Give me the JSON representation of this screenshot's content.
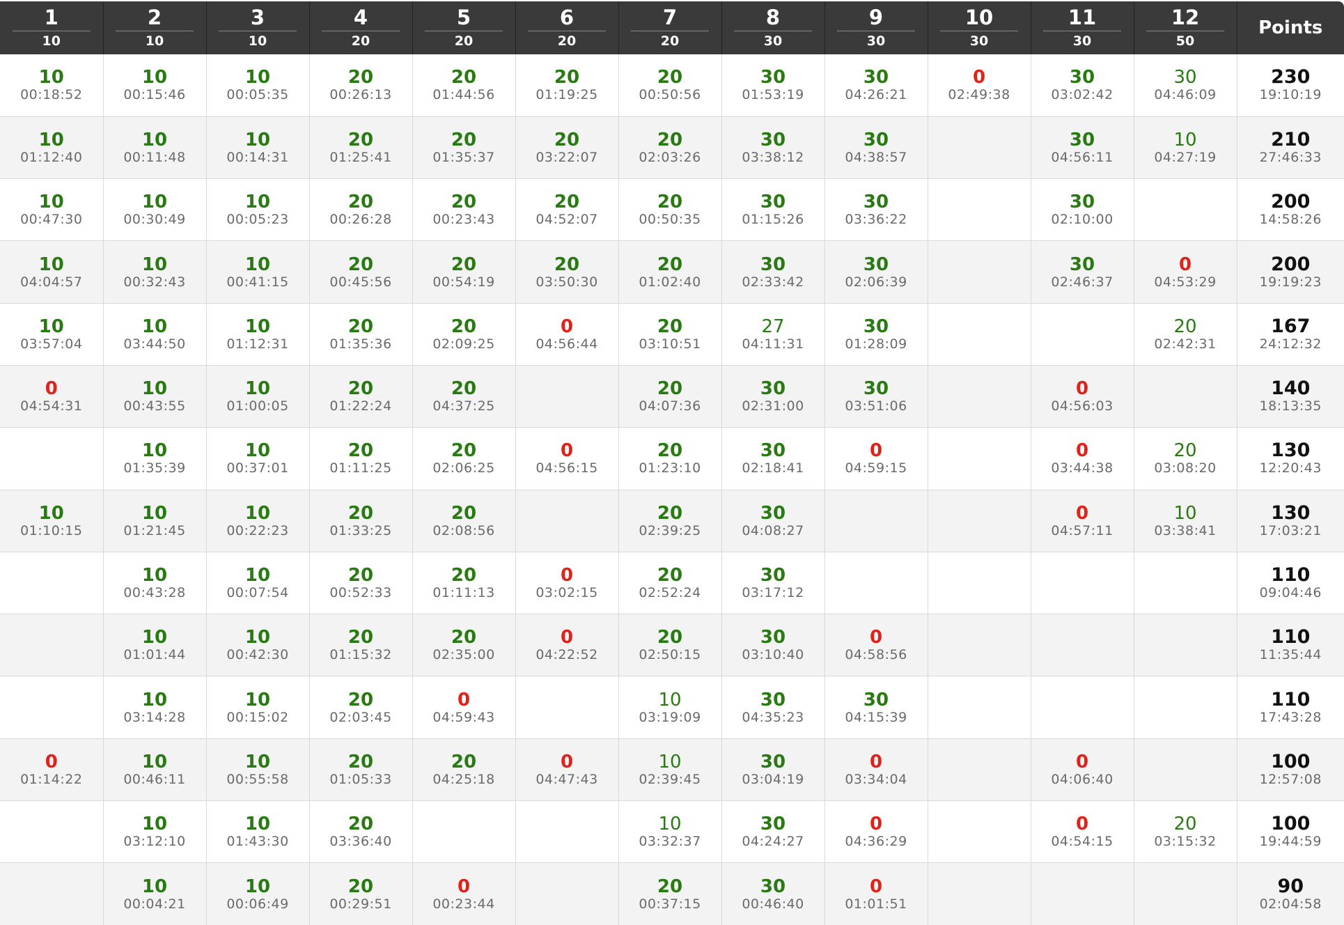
{
  "colors": {
    "header_bg": "#3a3a3a",
    "score_green": "#2a7a14",
    "score_red": "#e0231a",
    "time_gray": "#6a6a6a",
    "row_alt": "#f3f3f3"
  },
  "header": {
    "problems": [
      {
        "num": "1",
        "pts": "10"
      },
      {
        "num": "2",
        "pts": "10"
      },
      {
        "num": "3",
        "pts": "10"
      },
      {
        "num": "4",
        "pts": "20"
      },
      {
        "num": "5",
        "pts": "20"
      },
      {
        "num": "6",
        "pts": "20"
      },
      {
        "num": "7",
        "pts": "20"
      },
      {
        "num": "8",
        "pts": "30"
      },
      {
        "num": "9",
        "pts": "30"
      },
      {
        "num": "10",
        "pts": "30"
      },
      {
        "num": "11",
        "pts": "30"
      },
      {
        "num": "12",
        "pts": "50"
      }
    ],
    "points_label": "Points"
  },
  "rows": [
    {
      "cells": [
        {
          "score": "10",
          "time": "00:18:52",
          "status": "full"
        },
        {
          "score": "10",
          "time": "00:15:46",
          "status": "full"
        },
        {
          "score": "10",
          "time": "00:05:35",
          "status": "full"
        },
        {
          "score": "20",
          "time": "00:26:13",
          "status": "full"
        },
        {
          "score": "20",
          "time": "01:44:56",
          "status": "full"
        },
        {
          "score": "20",
          "time": "01:19:25",
          "status": "full"
        },
        {
          "score": "20",
          "time": "00:50:56",
          "status": "full"
        },
        {
          "score": "30",
          "time": "01:53:19",
          "status": "full"
        },
        {
          "score": "30",
          "time": "04:26:21",
          "status": "full"
        },
        {
          "score": "0",
          "time": "02:49:38",
          "status": "zero"
        },
        {
          "score": "30",
          "time": "03:02:42",
          "status": "full"
        },
        {
          "score": "30",
          "time": "04:46:09",
          "status": "partial"
        }
      ],
      "total": "230",
      "total_time": "19:10:19"
    },
    {
      "cells": [
        {
          "score": "10",
          "time": "01:12:40",
          "status": "full"
        },
        {
          "score": "10",
          "time": "00:11:48",
          "status": "full"
        },
        {
          "score": "10",
          "time": "00:14:31",
          "status": "full"
        },
        {
          "score": "20",
          "time": "01:25:41",
          "status": "full"
        },
        {
          "score": "20",
          "time": "01:35:37",
          "status": "full"
        },
        {
          "score": "20",
          "time": "03:22:07",
          "status": "full"
        },
        {
          "score": "20",
          "time": "02:03:26",
          "status": "full"
        },
        {
          "score": "30",
          "time": "03:38:12",
          "status": "full"
        },
        {
          "score": "30",
          "time": "04:38:57",
          "status": "full"
        },
        null,
        {
          "score": "30",
          "time": "04:56:11",
          "status": "full"
        },
        {
          "score": "10",
          "time": "04:27:19",
          "status": "partial"
        }
      ],
      "total": "210",
      "total_time": "27:46:33"
    },
    {
      "cells": [
        {
          "score": "10",
          "time": "00:47:30",
          "status": "full"
        },
        {
          "score": "10",
          "time": "00:30:49",
          "status": "full"
        },
        {
          "score": "10",
          "time": "00:05:23",
          "status": "full"
        },
        {
          "score": "20",
          "time": "00:26:28",
          "status": "full"
        },
        {
          "score": "20",
          "time": "00:23:43",
          "status": "full"
        },
        {
          "score": "20",
          "time": "04:52:07",
          "status": "full"
        },
        {
          "score": "20",
          "time": "00:50:35",
          "status": "full"
        },
        {
          "score": "30",
          "time": "01:15:26",
          "status": "full"
        },
        {
          "score": "30",
          "time": "03:36:22",
          "status": "full"
        },
        null,
        {
          "score": "30",
          "time": "02:10:00",
          "status": "full"
        },
        null
      ],
      "total": "200",
      "total_time": "14:58:26"
    },
    {
      "cells": [
        {
          "score": "10",
          "time": "04:04:57",
          "status": "full"
        },
        {
          "score": "10",
          "time": "00:32:43",
          "status": "full"
        },
        {
          "score": "10",
          "time": "00:41:15",
          "status": "full"
        },
        {
          "score": "20",
          "time": "00:45:56",
          "status": "full"
        },
        {
          "score": "20",
          "time": "00:54:19",
          "status": "full"
        },
        {
          "score": "20",
          "time": "03:50:30",
          "status": "full"
        },
        {
          "score": "20",
          "time": "01:02:40",
          "status": "full"
        },
        {
          "score": "30",
          "time": "02:33:42",
          "status": "full"
        },
        {
          "score": "30",
          "time": "02:06:39",
          "status": "full"
        },
        null,
        {
          "score": "30",
          "time": "02:46:37",
          "status": "full"
        },
        {
          "score": "0",
          "time": "04:53:29",
          "status": "zero"
        }
      ],
      "total": "200",
      "total_time": "19:19:23"
    },
    {
      "cells": [
        {
          "score": "10",
          "time": "03:57:04",
          "status": "full"
        },
        {
          "score": "10",
          "time": "03:44:50",
          "status": "full"
        },
        {
          "score": "10",
          "time": "01:12:31",
          "status": "full"
        },
        {
          "score": "20",
          "time": "01:35:36",
          "status": "full"
        },
        {
          "score": "20",
          "time": "02:09:25",
          "status": "full"
        },
        {
          "score": "0",
          "time": "04:56:44",
          "status": "zero"
        },
        {
          "score": "20",
          "time": "03:10:51",
          "status": "full"
        },
        {
          "score": "27",
          "time": "04:11:31",
          "status": "partial"
        },
        {
          "score": "30",
          "time": "01:28:09",
          "status": "full"
        },
        null,
        null,
        {
          "score": "20",
          "time": "02:42:31",
          "status": "partial"
        }
      ],
      "total": "167",
      "total_time": "24:12:32"
    },
    {
      "cells": [
        {
          "score": "0",
          "time": "04:54:31",
          "status": "zero"
        },
        {
          "score": "10",
          "time": "00:43:55",
          "status": "full"
        },
        {
          "score": "10",
          "time": "01:00:05",
          "status": "full"
        },
        {
          "score": "20",
          "time": "01:22:24",
          "status": "full"
        },
        {
          "score": "20",
          "time": "04:37:25",
          "status": "full"
        },
        null,
        {
          "score": "20",
          "time": "04:07:36",
          "status": "full"
        },
        {
          "score": "30",
          "time": "02:31:00",
          "status": "full"
        },
        {
          "score": "30",
          "time": "03:51:06",
          "status": "full"
        },
        null,
        {
          "score": "0",
          "time": "04:56:03",
          "status": "zero"
        },
        null
      ],
      "total": "140",
      "total_time": "18:13:35"
    },
    {
      "cells": [
        null,
        {
          "score": "10",
          "time": "01:35:39",
          "status": "full"
        },
        {
          "score": "10",
          "time": "00:37:01",
          "status": "full"
        },
        {
          "score": "20",
          "time": "01:11:25",
          "status": "full"
        },
        {
          "score": "20",
          "time": "02:06:25",
          "status": "full"
        },
        {
          "score": "0",
          "time": "04:56:15",
          "status": "zero"
        },
        {
          "score": "20",
          "time": "01:23:10",
          "status": "full"
        },
        {
          "score": "30",
          "time": "02:18:41",
          "status": "full"
        },
        {
          "score": "0",
          "time": "04:59:15",
          "status": "zero"
        },
        null,
        {
          "score": "0",
          "time": "03:44:38",
          "status": "zero"
        },
        {
          "score": "20",
          "time": "03:08:20",
          "status": "partial"
        }
      ],
      "total": "130",
      "total_time": "12:20:43"
    },
    {
      "cells": [
        {
          "score": "10",
          "time": "01:10:15",
          "status": "full"
        },
        {
          "score": "10",
          "time": "01:21:45",
          "status": "full"
        },
        {
          "score": "10",
          "time": "00:22:23",
          "status": "full"
        },
        {
          "score": "20",
          "time": "01:33:25",
          "status": "full"
        },
        {
          "score": "20",
          "time": "02:08:56",
          "status": "full"
        },
        null,
        {
          "score": "20",
          "time": "02:39:25",
          "status": "full"
        },
        {
          "score": "30",
          "time": "04:08:27",
          "status": "full"
        },
        null,
        null,
        {
          "score": "0",
          "time": "04:57:11",
          "status": "zero"
        },
        {
          "score": "10",
          "time": "03:38:41",
          "status": "partial"
        }
      ],
      "total": "130",
      "total_time": "17:03:21"
    },
    {
      "cells": [
        null,
        {
          "score": "10",
          "time": "00:43:28",
          "status": "full"
        },
        {
          "score": "10",
          "time": "00:07:54",
          "status": "full"
        },
        {
          "score": "20",
          "time": "00:52:33",
          "status": "full"
        },
        {
          "score": "20",
          "time": "01:11:13",
          "status": "full"
        },
        {
          "score": "0",
          "time": "03:02:15",
          "status": "zero"
        },
        {
          "score": "20",
          "time": "02:52:24",
          "status": "full"
        },
        {
          "score": "30",
          "time": "03:17:12",
          "status": "full"
        },
        null,
        null,
        null,
        null
      ],
      "total": "110",
      "total_time": "09:04:46"
    },
    {
      "cells": [
        null,
        {
          "score": "10",
          "time": "01:01:44",
          "status": "full"
        },
        {
          "score": "10",
          "time": "00:42:30",
          "status": "full"
        },
        {
          "score": "20",
          "time": "01:15:32",
          "status": "full"
        },
        {
          "score": "20",
          "time": "02:35:00",
          "status": "full"
        },
        {
          "score": "0",
          "time": "04:22:52",
          "status": "zero"
        },
        {
          "score": "20",
          "time": "02:50:15",
          "status": "full"
        },
        {
          "score": "30",
          "time": "03:10:40",
          "status": "full"
        },
        {
          "score": "0",
          "time": "04:58:56",
          "status": "zero"
        },
        null,
        null,
        null
      ],
      "total": "110",
      "total_time": "11:35:44"
    },
    {
      "cells": [
        null,
        {
          "score": "10",
          "time": "03:14:28",
          "status": "full"
        },
        {
          "score": "10",
          "time": "00:15:02",
          "status": "full"
        },
        {
          "score": "20",
          "time": "02:03:45",
          "status": "full"
        },
        {
          "score": "0",
          "time": "04:59:43",
          "status": "zero"
        },
        null,
        {
          "score": "10",
          "time": "03:19:09",
          "status": "partial"
        },
        {
          "score": "30",
          "time": "04:35:23",
          "status": "full"
        },
        {
          "score": "30",
          "time": "04:15:39",
          "status": "full"
        },
        null,
        null,
        null
      ],
      "total": "110",
      "total_time": "17:43:28"
    },
    {
      "cells": [
        {
          "score": "0",
          "time": "01:14:22",
          "status": "zero"
        },
        {
          "score": "10",
          "time": "00:46:11",
          "status": "full"
        },
        {
          "score": "10",
          "time": "00:55:58",
          "status": "full"
        },
        {
          "score": "20",
          "time": "01:05:33",
          "status": "full"
        },
        {
          "score": "20",
          "time": "04:25:18",
          "status": "full"
        },
        {
          "score": "0",
          "time": "04:47:43",
          "status": "zero"
        },
        {
          "score": "10",
          "time": "02:39:45",
          "status": "partial"
        },
        {
          "score": "30",
          "time": "03:04:19",
          "status": "full"
        },
        {
          "score": "0",
          "time": "03:34:04",
          "status": "zero"
        },
        null,
        {
          "score": "0",
          "time": "04:06:40",
          "status": "zero"
        },
        null
      ],
      "total": "100",
      "total_time": "12:57:08"
    },
    {
      "cells": [
        null,
        {
          "score": "10",
          "time": "03:12:10",
          "status": "full"
        },
        {
          "score": "10",
          "time": "01:43:30",
          "status": "full"
        },
        {
          "score": "20",
          "time": "03:36:40",
          "status": "full"
        },
        null,
        null,
        {
          "score": "10",
          "time": "03:32:37",
          "status": "partial"
        },
        {
          "score": "30",
          "time": "04:24:27",
          "status": "full"
        },
        {
          "score": "0",
          "time": "04:36:29",
          "status": "zero"
        },
        null,
        {
          "score": "0",
          "time": "04:54:15",
          "status": "zero"
        },
        {
          "score": "20",
          "time": "03:15:32",
          "status": "partial"
        }
      ],
      "total": "100",
      "total_time": "19:44:59"
    },
    {
      "cells": [
        null,
        {
          "score": "10",
          "time": "00:04:21",
          "status": "full"
        },
        {
          "score": "10",
          "time": "00:06:49",
          "status": "full"
        },
        {
          "score": "20",
          "time": "00:29:51",
          "status": "full"
        },
        {
          "score": "0",
          "time": "00:23:44",
          "status": "zero"
        },
        null,
        {
          "score": "20",
          "time": "00:37:15",
          "status": "full"
        },
        {
          "score": "30",
          "time": "00:46:40",
          "status": "full"
        },
        {
          "score": "0",
          "time": "01:01:51",
          "status": "zero"
        },
        null,
        null,
        null
      ],
      "total": "90",
      "total_time": "02:04:58"
    }
  ]
}
